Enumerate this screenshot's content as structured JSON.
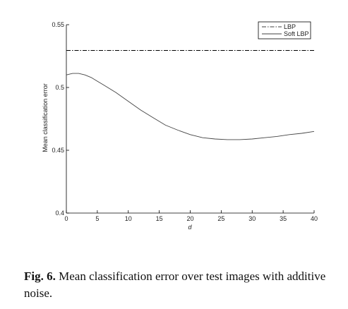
{
  "chart_data": {
    "type": "line",
    "xlabel": "d",
    "ylabel": "Mean classification error",
    "xlim": [
      0,
      40
    ],
    "ylim": [
      0.4,
      0.55
    ],
    "xticks": [
      0,
      5,
      10,
      15,
      20,
      25,
      30,
      35,
      40
    ],
    "yticks": [
      0.4,
      0.45,
      0.5,
      0.55
    ],
    "xtick_labels": [
      "0",
      "5",
      "10",
      "15",
      "20",
      "25",
      "30",
      "35",
      "40"
    ],
    "ytick_labels": [
      "0.4",
      "0.45",
      "0.5",
      "0.55"
    ],
    "legend_position": "top-right",
    "series": [
      {
        "name": "LBP",
        "style": "dash-dot",
        "x": [
          0,
          40
        ],
        "y": [
          0.5295,
          0.5295
        ]
      },
      {
        "name": "Soft LBP",
        "style": "solid",
        "x": [
          0,
          1,
          2,
          3,
          4,
          5,
          6,
          8,
          10,
          12,
          14,
          16,
          18,
          20,
          22,
          24,
          26,
          28,
          30,
          32,
          34,
          36,
          38,
          40
        ],
        "y": [
          0.51,
          0.5112,
          0.5112,
          0.51,
          0.508,
          0.505,
          0.502,
          0.496,
          0.489,
          0.482,
          0.476,
          0.47,
          0.466,
          0.4625,
          0.46,
          0.459,
          0.4585,
          0.4585,
          0.459,
          0.46,
          0.461,
          0.4625,
          0.4635,
          0.465
        ]
      }
    ]
  },
  "caption": {
    "label": "Fig. 6.",
    "text": " Mean classification error over test images with additive noise."
  }
}
